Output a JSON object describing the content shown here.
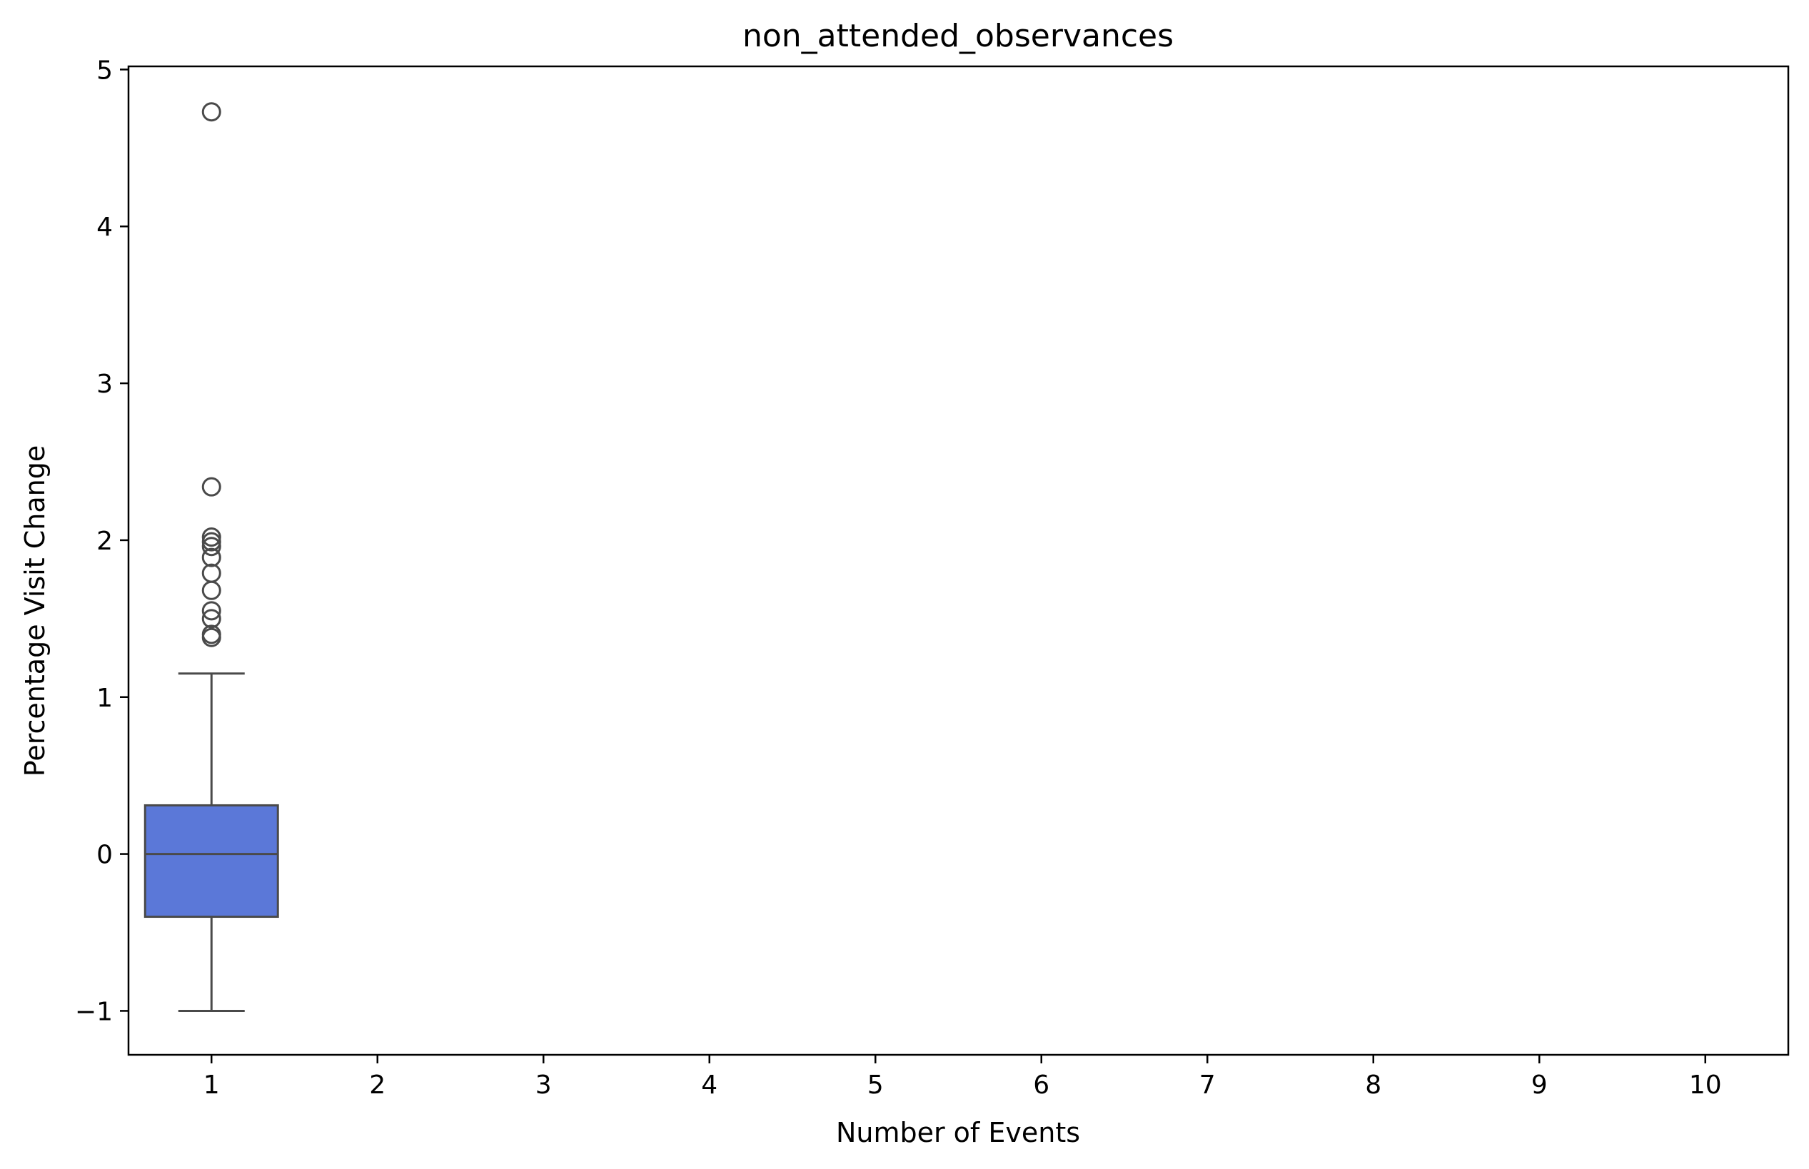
{
  "chart_data": {
    "type": "box",
    "title": "non_attended_observances",
    "xlabel": "Number of Events",
    "ylabel": "Percentage Visit Change",
    "categories": [
      "1",
      "2",
      "3",
      "4",
      "5",
      "6",
      "7",
      "8",
      "9",
      "10"
    ],
    "ylim": [
      -1.28,
      5.02
    ],
    "yticks": [
      -1,
      0,
      1,
      2,
      3,
      4,
      5
    ],
    "ytick_labels": [
      "−1",
      "0",
      "1",
      "2",
      "3",
      "4",
      "5"
    ],
    "grid": false,
    "box_color": "#5b78d8",
    "boxes": [
      {
        "category": "1",
        "q1": -0.4,
        "median": 0.0,
        "q3": 0.31,
        "whisker_low": -1.0,
        "whisker_high": 1.15,
        "outliers": [
          4.73,
          2.34,
          2.02,
          1.99,
          1.96,
          1.89,
          1.79,
          1.68,
          1.55,
          1.5,
          1.4,
          1.38
        ]
      }
    ]
  }
}
